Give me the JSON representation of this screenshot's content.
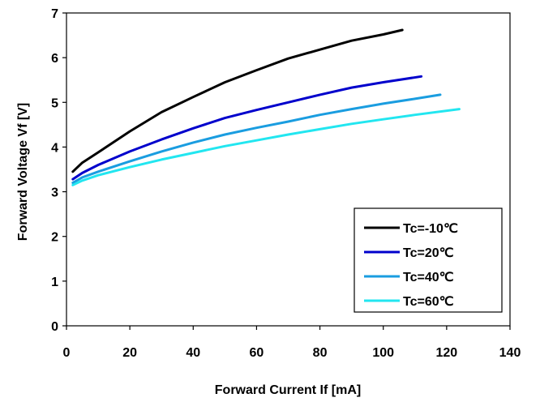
{
  "chart_data": {
    "type": "line",
    "title": "",
    "xlabel": "Forward Current If [mA]",
    "ylabel": "Forward Voltage Vf [V]",
    "xlim": [
      0,
      140
    ],
    "ylim": [
      0,
      7
    ],
    "xticks": [
      "0",
      "20",
      "40",
      "60",
      "80",
      "100",
      "120",
      "140"
    ],
    "yticks": [
      "0",
      "1",
      "2",
      "3",
      "4",
      "5",
      "6",
      "7"
    ],
    "grid": false,
    "legend_position": "bottom-right",
    "series": [
      {
        "name": "Tc=-10℃",
        "color": "#000000",
        "x": [
          2,
          5,
          10,
          20,
          30,
          40,
          50,
          60,
          70,
          80,
          90,
          100,
          106
        ],
        "y": [
          3.45,
          3.65,
          3.88,
          4.35,
          4.78,
          5.12,
          5.45,
          5.72,
          5.98,
          6.18,
          6.38,
          6.52,
          6.62
        ]
      },
      {
        "name": "Tc=20℃",
        "color": "#0000cc",
        "x": [
          2,
          5,
          10,
          20,
          30,
          40,
          50,
          60,
          70,
          80,
          90,
          100,
          112
        ],
        "y": [
          3.28,
          3.42,
          3.6,
          3.9,
          4.17,
          4.42,
          4.65,
          4.83,
          5.0,
          5.17,
          5.33,
          5.45,
          5.58
        ]
      },
      {
        "name": "Tc=40℃",
        "color": "#1a9de0",
        "x": [
          2,
          5,
          10,
          20,
          30,
          40,
          50,
          60,
          70,
          80,
          90,
          100,
          110,
          118
        ],
        "y": [
          3.2,
          3.32,
          3.45,
          3.68,
          3.9,
          4.1,
          4.28,
          4.43,
          4.57,
          4.72,
          4.85,
          4.97,
          5.08,
          5.17
        ]
      },
      {
        "name": "Tc=60℃",
        "color": "#22e6f0",
        "x": [
          2,
          5,
          10,
          20,
          30,
          40,
          50,
          60,
          70,
          80,
          90,
          100,
          110,
          124
        ],
        "y": [
          3.15,
          3.25,
          3.37,
          3.55,
          3.72,
          3.87,
          4.02,
          4.15,
          4.28,
          4.4,
          4.52,
          4.62,
          4.72,
          4.85
        ]
      }
    ]
  }
}
